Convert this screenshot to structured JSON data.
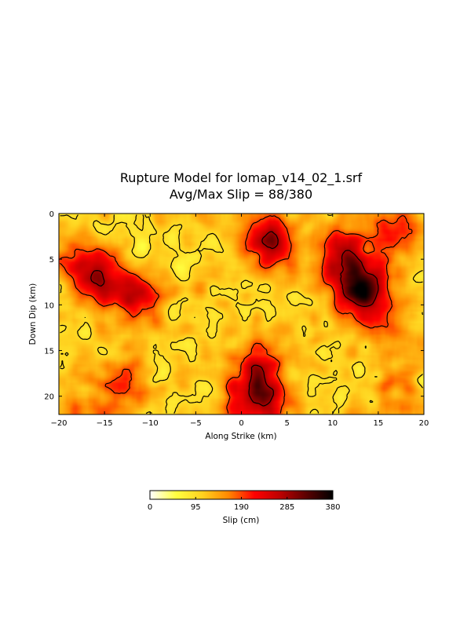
{
  "chart_data": {
    "type": "heatmap",
    "title": "Rupture Model for lomap_v14_02_1.srf",
    "subtitle": "Avg/Max Slip = 88/380",
    "xlabel": "Along Strike (km)",
    "ylabel": "Down Dip (km)",
    "xlim": [
      -20,
      20
    ],
    "ylim": [
      22,
      0
    ],
    "y_inverted": true,
    "x_ticks": [
      "−20",
      "−15",
      "−10",
      "−5",
      "0",
      "5",
      "10",
      "15",
      "20"
    ],
    "y_ticks": [
      "0",
      "5",
      "10",
      "15",
      "20"
    ],
    "colorbar": {
      "label": "Slip (cm)",
      "min": 0,
      "max": 380,
      "ticks": [
        "0",
        "95",
        "190",
        "285",
        "380"
      ],
      "colormap": [
        "#ffffff",
        "#ffff40",
        "#ffd21f",
        "#ff8800",
        "#ff0000",
        "#bb0000",
        "#5a0000",
        "#000000"
      ]
    },
    "avg_slip": 88,
    "max_slip": 380,
    "contours": "black",
    "high_slip_patches": [
      {
        "x": 3,
        "y": 3,
        "peak": 300
      },
      {
        "x": 13,
        "y": 8,
        "peak": 380
      },
      {
        "x": 2,
        "y": 20,
        "peak": 330
      },
      {
        "x": 11,
        "y": 4,
        "peak": 260
      },
      {
        "x": -11,
        "y": 9,
        "peak": 240
      },
      {
        "x": -15,
        "y": 8,
        "peak": 220
      },
      {
        "x": -17,
        "y": 6,
        "peak": 230
      },
      {
        "x": 17,
        "y": 2,
        "peak": 220
      },
      {
        "x": 2,
        "y": 16,
        "peak": 220
      },
      {
        "x": -13,
        "y": 19,
        "peak": 200
      },
      {
        "x": -18,
        "y": 21,
        "peak": 180
      },
      {
        "x": 16,
        "y": 12,
        "peak": 190
      },
      {
        "x": 18,
        "y": 19,
        "peak": 190
      }
    ]
  }
}
